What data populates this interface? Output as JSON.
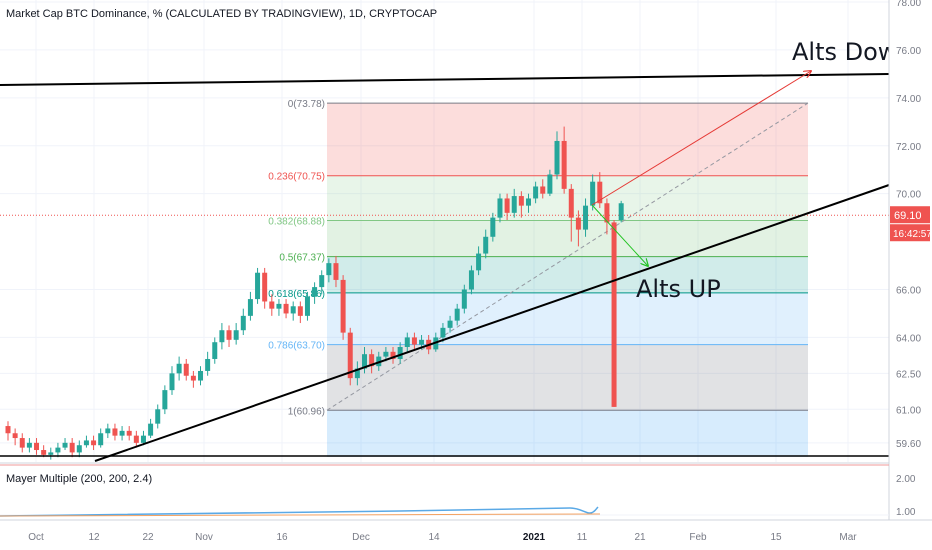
{
  "header": {
    "title": "Market Cap BTC Dominance, % (CALCULATED BY TRADINGVIEW), 1D, CRYPTOCAP"
  },
  "indicator": {
    "title": "Mayer Multiple (200, 200, 2.4)",
    "axis_labels": [
      "2.00",
      "1.00"
    ],
    "line_color": "#5aa9e6"
  },
  "colors": {
    "up": "#26a69a",
    "down": "#ef5350",
    "trendline": "#000000",
    "arrow_red": "#e53935",
    "arrow_green": "#22c322",
    "price_tag": "#ef5350"
  },
  "price_tag": {
    "value": "69.10",
    "timer": "16:42:57"
  },
  "annotations": {
    "alts_down": "Alts Down",
    "alts_up": "Alts UP"
  },
  "fib_labels": [
    {
      "ratio": 0,
      "text": "0(73.78)",
      "color": "#787b86"
    },
    {
      "ratio": 0.236,
      "text": "0.236(70.75)",
      "color": "#ef5350"
    },
    {
      "ratio": 0.382,
      "text": "0.382(68.88)",
      "color": "#81c784"
    },
    {
      "ratio": 0.5,
      "text": "0.5(67.37)",
      "color": "#4caf50"
    },
    {
      "ratio": 0.618,
      "text": "0.618(65.86)",
      "color": "#009688"
    },
    {
      "ratio": 0.786,
      "text": "0.786(63.70)",
      "color": "#64b5f6"
    },
    {
      "ratio": 1,
      "text": "1(60.96)",
      "color": "#787b86"
    }
  ],
  "chart_data": {
    "type": "candlestick",
    "title": "Market Cap BTC Dominance, % (CALCULATED BY TRADINGVIEW), 1D, CRYPTOCAP",
    "y_axis_ticks": [
      "78.00",
      "76.00",
      "74.00",
      "72.00",
      "70.00",
      "66.00",
      "64.00",
      "62.50",
      "61.00",
      "59.60"
    ],
    "x_axis_ticks": [
      "Oct",
      "12",
      "22",
      "Nov",
      "16",
      "Dec",
      "14",
      "2021",
      "11",
      "21",
      "Feb",
      "15",
      "Mar"
    ],
    "candles": [
      {
        "o": 60.3,
        "c": 60.0,
        "h": 60.5,
        "l": 59.7
      },
      {
        "o": 60.0,
        "c": 59.8,
        "h": 60.2,
        "l": 59.5
      },
      {
        "o": 59.8,
        "c": 59.4,
        "h": 60.0,
        "l": 59.2
      },
      {
        "o": 59.4,
        "c": 59.6,
        "h": 59.8,
        "l": 59.2
      },
      {
        "o": 59.6,
        "c": 59.3,
        "h": 59.8,
        "l": 59.1
      },
      {
        "o": 59.3,
        "c": 59.1,
        "h": 59.5,
        "l": 59.0
      },
      {
        "o": 59.1,
        "c": 59.2,
        "h": 59.4,
        "l": 58.9
      },
      {
        "o": 59.2,
        "c": 59.4,
        "h": 59.6,
        "l": 59.0
      },
      {
        "o": 59.4,
        "c": 59.6,
        "h": 59.8,
        "l": 59.3
      },
      {
        "o": 59.6,
        "c": 59.2,
        "h": 59.8,
        "l": 59.0
      },
      {
        "o": 59.2,
        "c": 59.5,
        "h": 59.7,
        "l": 59.0
      },
      {
        "o": 59.5,
        "c": 59.7,
        "h": 59.9,
        "l": 59.4
      },
      {
        "o": 59.7,
        "c": 59.5,
        "h": 59.9,
        "l": 59.3
      },
      {
        "o": 59.5,
        "c": 60.0,
        "h": 60.2,
        "l": 59.4
      },
      {
        "o": 60.0,
        "c": 60.2,
        "h": 60.4,
        "l": 59.8
      },
      {
        "o": 60.2,
        "c": 59.9,
        "h": 60.4,
        "l": 59.7
      },
      {
        "o": 59.9,
        "c": 60.1,
        "h": 60.3,
        "l": 59.7
      },
      {
        "o": 60.1,
        "c": 59.9,
        "h": 60.3,
        "l": 59.7
      },
      {
        "o": 59.9,
        "c": 59.6,
        "h": 60.1,
        "l": 59.4
      },
      {
        "o": 59.6,
        "c": 59.9,
        "h": 60.1,
        "l": 59.5
      },
      {
        "o": 59.9,
        "c": 60.4,
        "h": 60.6,
        "l": 59.8
      },
      {
        "o": 60.4,
        "c": 61.0,
        "h": 61.2,
        "l": 60.2
      },
      {
        "o": 61.0,
        "c": 61.8,
        "h": 62.0,
        "l": 60.8
      },
      {
        "o": 61.8,
        "c": 62.5,
        "h": 62.8,
        "l": 61.6
      },
      {
        "o": 62.5,
        "c": 62.9,
        "h": 63.2,
        "l": 62.2
      },
      {
        "o": 62.9,
        "c": 62.4,
        "h": 63.1,
        "l": 62.2
      },
      {
        "o": 62.4,
        "c": 62.2,
        "h": 62.6,
        "l": 61.9
      },
      {
        "o": 62.2,
        "c": 62.6,
        "h": 62.8,
        "l": 62.0
      },
      {
        "o": 62.6,
        "c": 63.1,
        "h": 63.4,
        "l": 62.4
      },
      {
        "o": 63.1,
        "c": 63.8,
        "h": 64.0,
        "l": 62.9
      },
      {
        "o": 63.8,
        "c": 64.3,
        "h": 64.6,
        "l": 63.5
      },
      {
        "o": 64.3,
        "c": 63.9,
        "h": 64.5,
        "l": 63.6
      },
      {
        "o": 63.9,
        "c": 64.3,
        "h": 64.6,
        "l": 63.7
      },
      {
        "o": 64.3,
        "c": 64.9,
        "h": 65.2,
        "l": 64.1
      },
      {
        "o": 64.9,
        "c": 65.6,
        "h": 65.9,
        "l": 64.7
      },
      {
        "o": 65.6,
        "c": 66.7,
        "h": 66.9,
        "l": 65.4
      },
      {
        "o": 66.7,
        "c": 65.5,
        "h": 66.9,
        "l": 65.2
      },
      {
        "o": 65.5,
        "c": 65.2,
        "h": 65.8,
        "l": 64.9
      },
      {
        "o": 65.2,
        "c": 65.4,
        "h": 65.6,
        "l": 64.9
      },
      {
        "o": 65.4,
        "c": 65.0,
        "h": 65.6,
        "l": 64.8
      },
      {
        "o": 65.0,
        "c": 65.3,
        "h": 65.5,
        "l": 64.7
      },
      {
        "o": 65.3,
        "c": 64.9,
        "h": 65.5,
        "l": 64.6
      },
      {
        "o": 64.9,
        "c": 65.7,
        "h": 65.9,
        "l": 64.7
      },
      {
        "o": 65.7,
        "c": 66.1,
        "h": 66.3,
        "l": 65.4
      },
      {
        "o": 66.1,
        "c": 66.6,
        "h": 66.8,
        "l": 65.8
      },
      {
        "o": 66.6,
        "c": 67.1,
        "h": 67.3,
        "l": 66.3
      },
      {
        "o": 67.1,
        "c": 66.4,
        "h": 67.4,
        "l": 66.1
      },
      {
        "o": 66.4,
        "c": 64.2,
        "h": 66.6,
        "l": 63.9
      },
      {
        "o": 64.2,
        "c": 62.3,
        "h": 64.4,
        "l": 62.0
      },
      {
        "o": 62.3,
        "c": 62.7,
        "h": 63.0,
        "l": 62.0
      },
      {
        "o": 62.7,
        "c": 63.3,
        "h": 63.6,
        "l": 62.5
      },
      {
        "o": 63.3,
        "c": 62.8,
        "h": 63.5,
        "l": 62.5
      },
      {
        "o": 62.8,
        "c": 63.2,
        "h": 63.4,
        "l": 62.6
      },
      {
        "o": 63.2,
        "c": 63.4,
        "h": 63.6,
        "l": 63.0
      },
      {
        "o": 63.4,
        "c": 63.1,
        "h": 63.6,
        "l": 62.9
      },
      {
        "o": 63.1,
        "c": 63.6,
        "h": 63.8,
        "l": 62.9
      },
      {
        "o": 63.6,
        "c": 64.0,
        "h": 64.2,
        "l": 63.4
      },
      {
        "o": 64.0,
        "c": 63.7,
        "h": 64.2,
        "l": 63.5
      },
      {
        "o": 63.7,
        "c": 63.9,
        "h": 64.1,
        "l": 63.5
      },
      {
        "o": 63.9,
        "c": 63.5,
        "h": 64.1,
        "l": 63.3
      },
      {
        "o": 63.5,
        "c": 64.0,
        "h": 64.2,
        "l": 63.4
      },
      {
        "o": 64.0,
        "c": 64.4,
        "h": 64.6,
        "l": 63.8
      },
      {
        "o": 64.4,
        "c": 64.7,
        "h": 64.9,
        "l": 64.2
      },
      {
        "o": 64.7,
        "c": 65.2,
        "h": 65.4,
        "l": 64.5
      },
      {
        "o": 65.2,
        "c": 66.0,
        "h": 66.2,
        "l": 65.0
      },
      {
        "o": 66.0,
        "c": 66.8,
        "h": 67.0,
        "l": 65.8
      },
      {
        "o": 66.8,
        "c": 67.5,
        "h": 67.8,
        "l": 66.6
      },
      {
        "o": 67.5,
        "c": 68.2,
        "h": 68.5,
        "l": 67.3
      },
      {
        "o": 68.2,
        "c": 69.0,
        "h": 69.2,
        "l": 68.0
      },
      {
        "o": 69.0,
        "c": 69.8,
        "h": 70.0,
        "l": 68.8
      },
      {
        "o": 69.8,
        "c": 69.2,
        "h": 70.0,
        "l": 68.9
      },
      {
        "o": 69.2,
        "c": 69.9,
        "h": 70.2,
        "l": 69.0
      },
      {
        "o": 69.9,
        "c": 69.5,
        "h": 70.1,
        "l": 69.0
      },
      {
        "o": 69.5,
        "c": 69.8,
        "h": 70.0,
        "l": 69.2
      },
      {
        "o": 69.8,
        "c": 70.3,
        "h": 70.5,
        "l": 69.6
      },
      {
        "o": 70.3,
        "c": 70.0,
        "h": 70.6,
        "l": 69.8
      },
      {
        "o": 70.0,
        "c": 70.8,
        "h": 71.0,
        "l": 69.9
      },
      {
        "o": 70.8,
        "c": 72.2,
        "h": 72.6,
        "l": 70.6
      },
      {
        "o": 72.2,
        "c": 70.2,
        "h": 72.8,
        "l": 70.0
      },
      {
        "o": 70.2,
        "c": 69.0,
        "h": 70.4,
        "l": 68.0
      },
      {
        "o": 69.0,
        "c": 68.5,
        "h": 69.3,
        "l": 67.8
      },
      {
        "o": 68.5,
        "c": 69.5,
        "h": 69.8,
        "l": 68.2
      },
      {
        "o": 69.5,
        "c": 70.5,
        "h": 70.8,
        "l": 69.3
      },
      {
        "o": 70.5,
        "c": 69.6,
        "h": 70.9,
        "l": 69.4
      },
      {
        "o": 69.6,
        "c": 68.8,
        "h": 69.8,
        "l": 68.3
      },
      {
        "o": 68.8,
        "c": 61.1,
        "h": 68.9,
        "l": 61.1
      },
      {
        "o": 68.9,
        "c": 69.6,
        "h": 69.7,
        "l": 68.8
      }
    ]
  }
}
